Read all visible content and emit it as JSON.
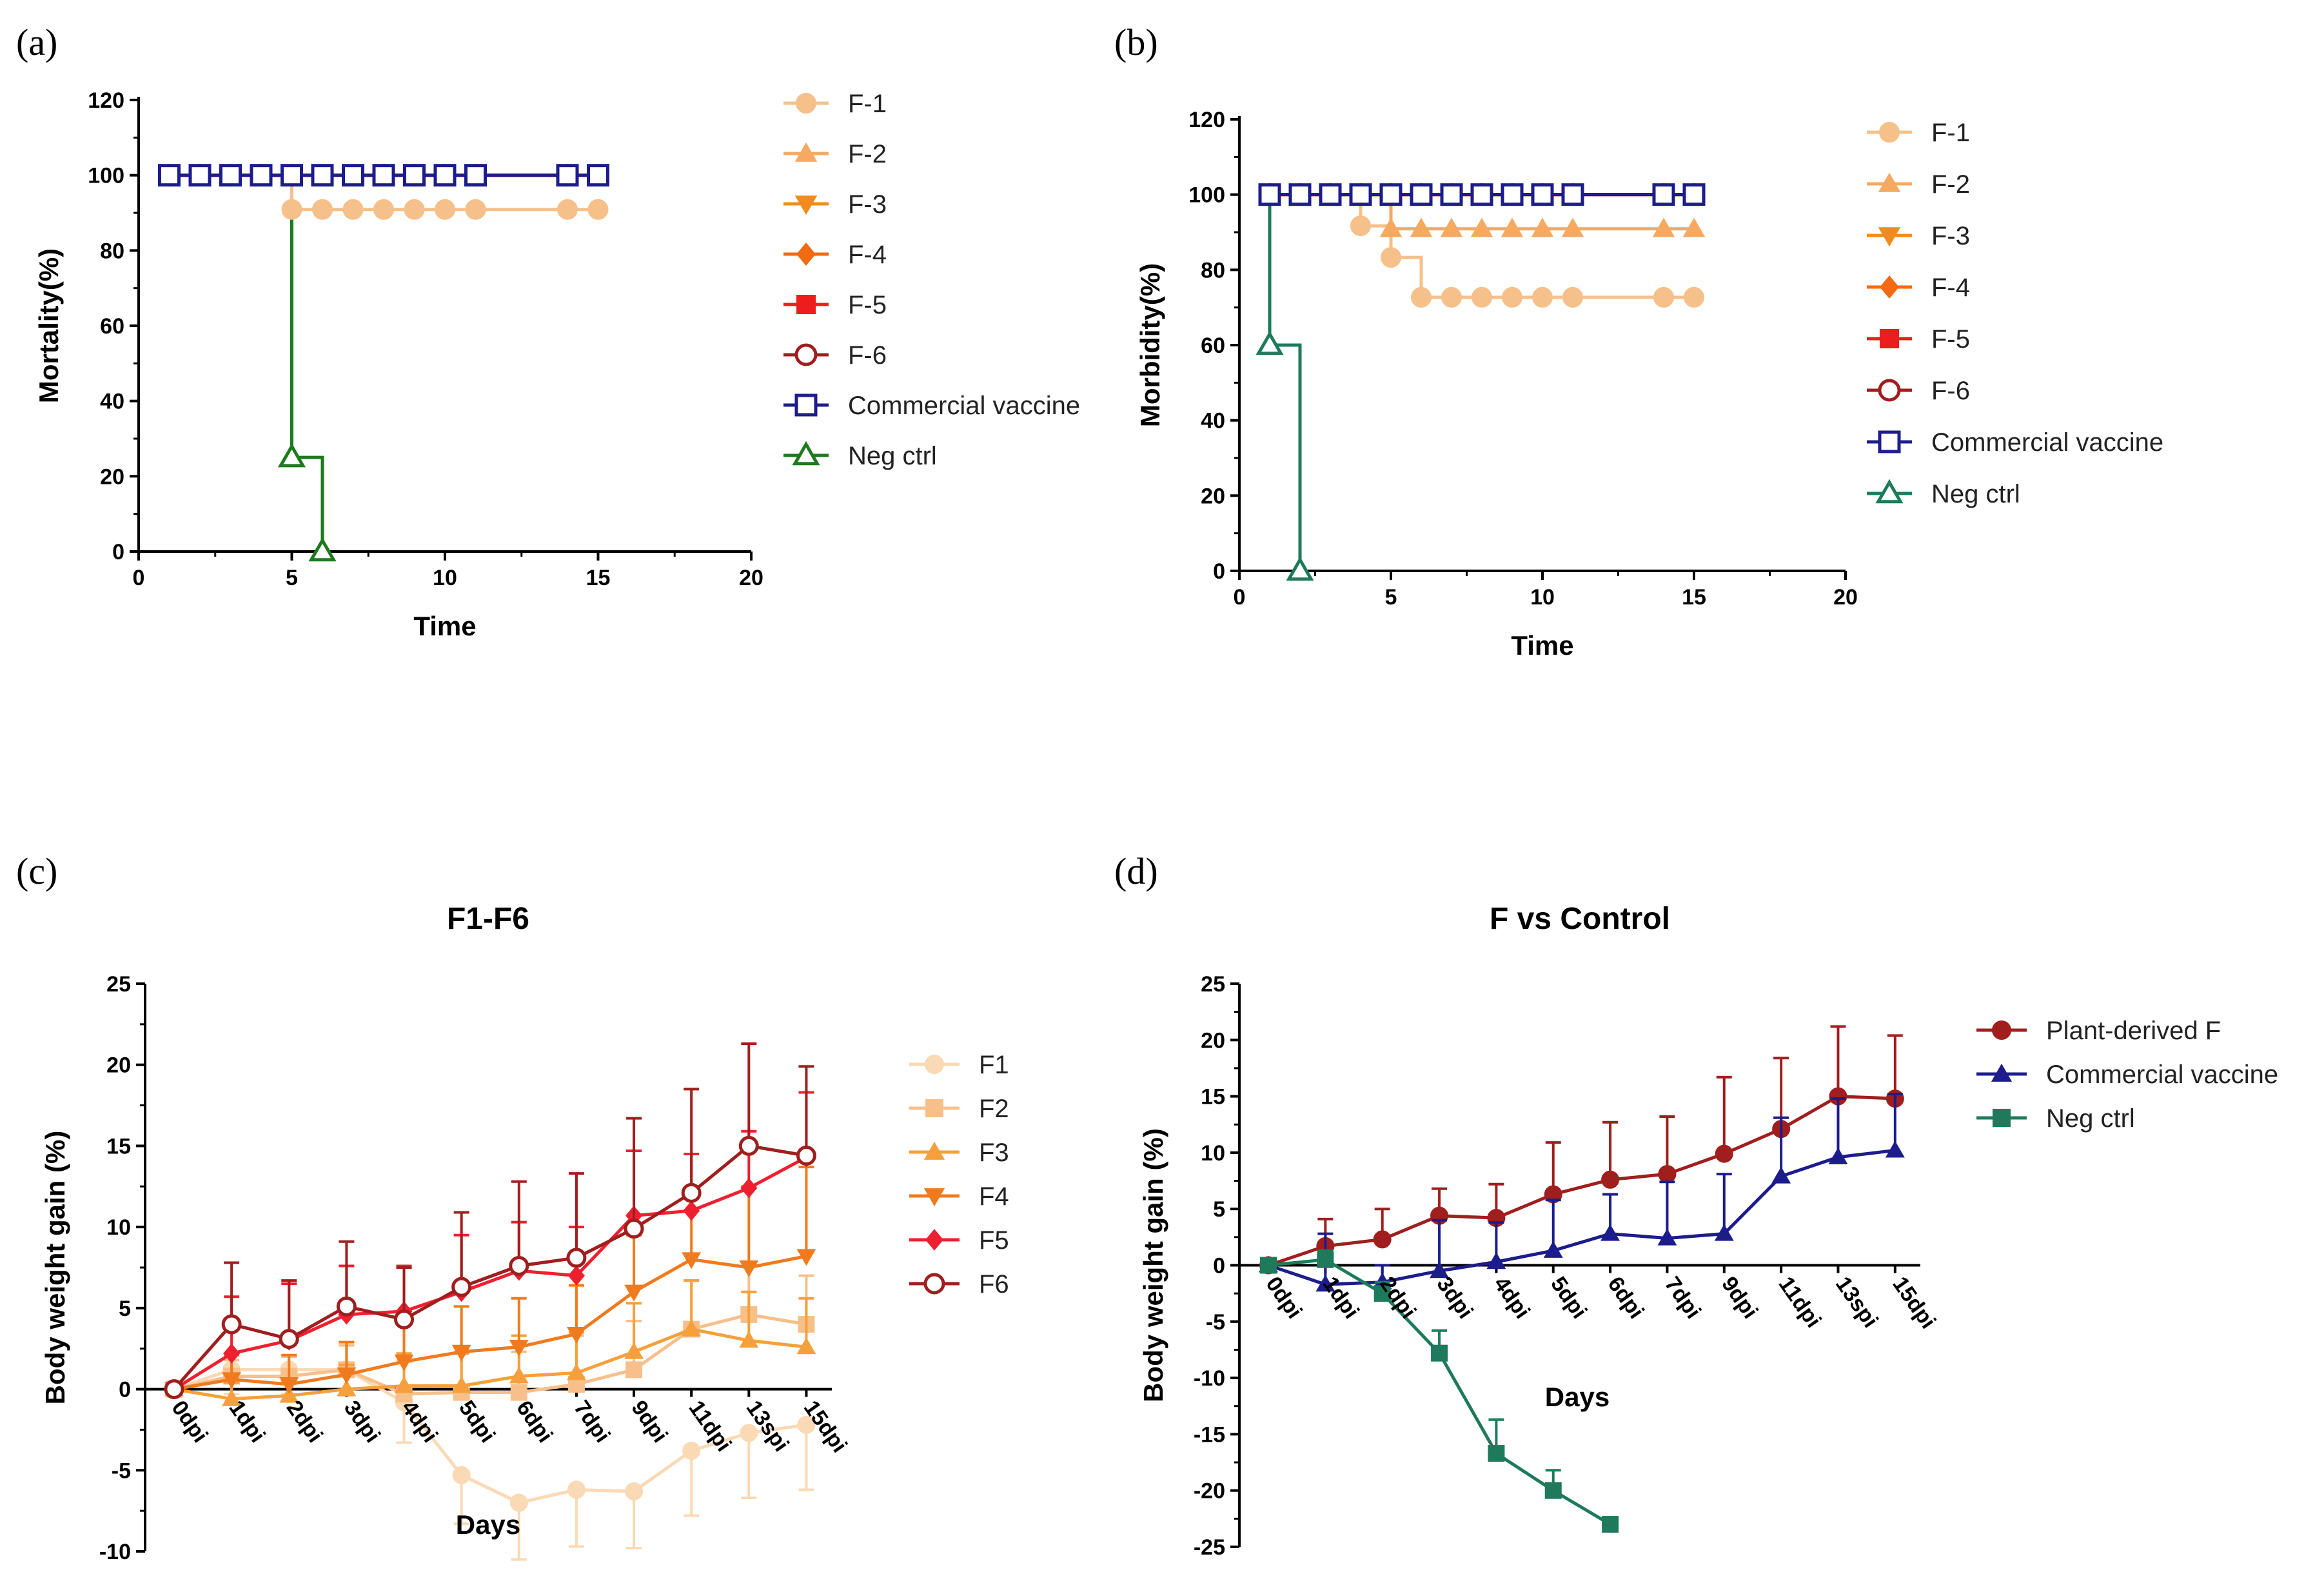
{
  "figure": {
    "panels": [
      {
        "id": "a",
        "label": "(a)"
      },
      {
        "id": "b",
        "label": "(b)"
      },
      {
        "id": "c",
        "label": "(c)"
      },
      {
        "id": "d",
        "label": "(d)"
      }
    ]
  },
  "chart_data": [
    {
      "id": "a",
      "type": "line",
      "step": true,
      "title": "",
      "xlabel": "Time",
      "ylabel": "Mortality(%)",
      "xlim": [
        0,
        20
      ],
      "ylim": [
        0,
        120
      ],
      "xticks": [
        0,
        5,
        10,
        15,
        20
      ],
      "yticks": [
        0,
        20,
        40,
        60,
        80,
        100,
        120
      ],
      "legend_position": "right",
      "series": [
        {
          "name": "F-1",
          "color": "#F6C08A",
          "marker": "circle",
          "x": [
            1,
            2,
            3,
            4,
            5,
            6,
            7,
            8,
            9,
            10,
            11,
            14,
            15
          ],
          "values": [
            100,
            100,
            100,
            100,
            90.9,
            90.9,
            90.9,
            90.9,
            90.9,
            90.9,
            90.9,
            90.9,
            90.9
          ]
        },
        {
          "name": "F-2",
          "color": "#F5A961",
          "marker": "triangle-up",
          "x": [
            1,
            2,
            3,
            4,
            5,
            6,
            7,
            8,
            9,
            10,
            11,
            14,
            15
          ],
          "values": [
            100,
            100,
            100,
            100,
            100,
            100,
            100,
            100,
            100,
            100,
            100,
            100,
            100
          ]
        },
        {
          "name": "F-3",
          "color": "#F08C1E",
          "marker": "triangle-down",
          "x": [
            1,
            2,
            3,
            4,
            5,
            6,
            7,
            8,
            9,
            10,
            11,
            14,
            15
          ],
          "values": [
            100,
            100,
            100,
            100,
            100,
            100,
            100,
            100,
            100,
            100,
            100,
            100,
            100
          ]
        },
        {
          "name": "F-4",
          "color": "#F26A12",
          "marker": "diamond",
          "x": [
            1,
            2,
            3,
            4,
            5,
            6,
            7,
            8,
            9,
            10,
            11,
            14,
            15
          ],
          "values": [
            100,
            100,
            100,
            100,
            100,
            100,
            100,
            100,
            100,
            100,
            100,
            100,
            100
          ]
        },
        {
          "name": "F-5",
          "color": "#EE1C1C",
          "marker": "square",
          "x": [
            1,
            2,
            3,
            4,
            5,
            6,
            7,
            8,
            9,
            10,
            11,
            14,
            15
          ],
          "values": [
            100,
            100,
            100,
            100,
            100,
            100,
            100,
            100,
            100,
            100,
            100,
            100,
            100
          ]
        },
        {
          "name": "F-6",
          "color": "#A01E1E",
          "marker": "circle-open",
          "x": [
            1,
            2,
            3,
            4,
            5,
            6,
            7,
            8,
            9,
            10,
            11,
            14,
            15
          ],
          "values": [
            100,
            100,
            100,
            100,
            100,
            100,
            100,
            100,
            100,
            100,
            100,
            100,
            100
          ]
        },
        {
          "name": "Commercial vaccine",
          "color": "#1C1C8C",
          "marker": "square-open",
          "x": [
            1,
            2,
            3,
            4,
            5,
            6,
            7,
            8,
            9,
            10,
            11,
            14,
            15
          ],
          "values": [
            100,
            100,
            100,
            100,
            100,
            100,
            100,
            100,
            100,
            100,
            100,
            100,
            100
          ]
        },
        {
          "name": "Neg ctrl",
          "color": "#1E7A1E",
          "marker": "triangle-open",
          "x": [
            5,
            6
          ],
          "values": [
            25,
            0
          ],
          "line_x": [
            1,
            5,
            6
          ],
          "line_values": [
            100,
            25,
            0
          ]
        }
      ]
    },
    {
      "id": "b",
      "type": "line",
      "step": true,
      "title": "",
      "xlabel": "Time",
      "ylabel": "Morbidity(%)",
      "xlim": [
        0,
        20
      ],
      "ylim": [
        0,
        120
      ],
      "xticks": [
        0,
        5,
        10,
        15,
        20
      ],
      "yticks": [
        0,
        20,
        40,
        60,
        80,
        100,
        120
      ],
      "legend_position": "right",
      "series": [
        {
          "name": "F-1",
          "color": "#F6C08A",
          "marker": "circle",
          "x": [
            1,
            2,
            3,
            4,
            5,
            6,
            7,
            8,
            9,
            10,
            11,
            14,
            15
          ],
          "values": [
            100,
            100,
            100,
            91.7,
            83.3,
            72.7,
            72.7,
            72.7,
            72.7,
            72.7,
            72.7,
            72.7,
            72.7
          ]
        },
        {
          "name": "F-2",
          "color": "#F5A961",
          "marker": "triangle-up",
          "x": [
            1,
            2,
            3,
            4,
            5,
            6,
            7,
            8,
            9,
            10,
            11,
            14,
            15
          ],
          "values": [
            100,
            100,
            100,
            100,
            90.9,
            90.9,
            90.9,
            90.9,
            90.9,
            90.9,
            90.9,
            90.9,
            90.9
          ]
        },
        {
          "name": "F-3",
          "color": "#F08C1E",
          "marker": "triangle-down",
          "x": [
            1,
            2,
            3,
            4,
            5,
            6,
            7,
            8,
            9,
            10,
            11,
            14,
            15
          ],
          "values": [
            100,
            100,
            100,
            100,
            100,
            100,
            100,
            100,
            100,
            100,
            100,
            100,
            100
          ]
        },
        {
          "name": "F-4",
          "color": "#F26A12",
          "marker": "diamond",
          "x": [
            1,
            2,
            3,
            4,
            5,
            6,
            7,
            8,
            9,
            10,
            11,
            14,
            15
          ],
          "values": [
            100,
            100,
            100,
            100,
            100,
            100,
            100,
            100,
            100,
            100,
            100,
            100,
            100
          ]
        },
        {
          "name": "F-5",
          "color": "#EE1C1C",
          "marker": "square",
          "x": [
            1,
            2,
            3,
            4,
            5,
            6,
            7,
            8,
            9,
            10,
            11,
            14,
            15
          ],
          "values": [
            100,
            100,
            100,
            100,
            100,
            100,
            100,
            100,
            100,
            100,
            100,
            100,
            100
          ]
        },
        {
          "name": "F-6",
          "color": "#A01E1E",
          "marker": "circle-open",
          "x": [
            1,
            2,
            3,
            4,
            5,
            6,
            7,
            8,
            9,
            10,
            11,
            14,
            15
          ],
          "values": [
            100,
            100,
            100,
            100,
            100,
            100,
            100,
            100,
            100,
            100,
            100,
            100,
            100
          ]
        },
        {
          "name": "Commercial vaccine",
          "color": "#1C1C8C",
          "marker": "square-open",
          "x": [
            1,
            2,
            3,
            4,
            5,
            6,
            7,
            8,
            9,
            10,
            11,
            14,
            15
          ],
          "values": [
            100,
            100,
            100,
            100,
            100,
            100,
            100,
            100,
            100,
            100,
            100,
            100,
            100
          ]
        },
        {
          "name": "Neg ctrl",
          "color": "#1E7A5A",
          "marker": "triangle-open",
          "x": [
            1,
            2
          ],
          "values": [
            60,
            0
          ],
          "line_x": [
            1,
            2
          ],
          "line_values": [
            60,
            0
          ],
          "start_value": 100
        }
      ]
    },
    {
      "id": "c",
      "type": "line",
      "title": "F1-F6",
      "xlabel": "Days",
      "ylabel": "Body weight gain (%)",
      "ylim": [
        -10,
        25
      ],
      "yticks": [
        -10,
        -5,
        0,
        5,
        10,
        15,
        20,
        25
      ],
      "categories": [
        "0dpi",
        "1dpi",
        "2dpi",
        "3dpi",
        "4dpi",
        "5dpi",
        "6dpi",
        "7dpi",
        "9dpi",
        "11dpi",
        "13spi",
        "15dpi"
      ],
      "legend_position": "right",
      "series": [
        {
          "name": "F1",
          "color": "#FAD9B5",
          "marker": "circle",
          "values": [
            0,
            1.2,
            1.2,
            1.2,
            -0.8,
            -5.3,
            -7.0,
            -6.2,
            -6.3,
            -3.8,
            -2.7,
            -2.2
          ],
          "errors": [
            0,
            1.5,
            1.5,
            1.5,
            2.5,
            3.0,
            3.5,
            3.5,
            3.5,
            4.0,
            4.0,
            4.0
          ]
        },
        {
          "name": "F2",
          "color": "#F7C08A",
          "marker": "square",
          "values": [
            0,
            0.8,
            0.8,
            1.2,
            -0.3,
            -0.2,
            -0.2,
            0.3,
            1.2,
            3.7,
            4.6,
            4.0
          ],
          "errors": [
            0,
            1.0,
            1.2,
            1.5,
            2.0,
            2.5,
            2.5,
            3.0,
            3.0,
            3.0,
            3.0,
            3.0
          ]
        },
        {
          "name": "F3",
          "color": "#F5A03C",
          "marker": "triangle-up",
          "values": [
            0,
            -0.6,
            -0.4,
            0,
            0.2,
            0.2,
            0.8,
            1.0,
            2.3,
            3.7,
            3.0,
            2.6
          ],
          "errors": [
            0,
            1.0,
            1.0,
            1.5,
            2.0,
            2.0,
            2.5,
            2.5,
            3.0,
            3.0,
            3.0,
            3.0
          ]
        },
        {
          "name": "F4",
          "color": "#F07A1E",
          "marker": "triangle-down",
          "values": [
            0,
            0.6,
            0.3,
            0.9,
            1.7,
            2.3,
            2.6,
            3.4,
            6.0,
            8.0,
            7.5,
            8.2
          ],
          "errors": [
            0,
            1.5,
            1.8,
            2.0,
            2.5,
            2.8,
            3.0,
            3.0,
            3.5,
            4.0,
            5.0,
            5.5
          ]
        },
        {
          "name": "F5",
          "color": "#EE2030",
          "marker": "diamond",
          "values": [
            0,
            2.2,
            3.0,
            4.6,
            4.8,
            6.0,
            7.3,
            7.0,
            10.7,
            11.0,
            12.4,
            14.3
          ],
          "errors": [
            0,
            3.5,
            3.5,
            3.0,
            2.8,
            3.5,
            3.0,
            3.0,
            4.0,
            3.5,
            3.5,
            4.0
          ]
        },
        {
          "name": "F6",
          "color": "#A01E1E",
          "marker": "circle-open",
          "values": [
            0,
            4.0,
            3.1,
            5.1,
            4.3,
            6.3,
            7.6,
            8.1,
            9.9,
            12.1,
            15.0,
            14.4
          ],
          "errors": [
            0,
            3.8,
            3.6,
            4.0,
            3.2,
            4.6,
            5.2,
            5.2,
            6.8,
            6.4,
            6.3,
            5.5
          ]
        }
      ]
    },
    {
      "id": "d",
      "type": "line",
      "title": "F vs Control",
      "xlabel": "Days",
      "ylabel": "Body weight gain (%)",
      "ylim": [
        -25,
        25
      ],
      "yticks": [
        -25,
        -20,
        -15,
        -10,
        -5,
        0,
        5,
        10,
        15,
        20,
        25
      ],
      "categories": [
        "0dpi",
        "1dpi",
        "2dpi",
        "3dpi",
        "4dpi",
        "5dpi",
        "6dpi",
        "7dpi",
        "9dpi",
        "11dpi",
        "13spi",
        "15dpi"
      ],
      "legend_position": "right",
      "series": [
        {
          "name": "Plant-derived F",
          "color": "#A01E1E",
          "marker": "circle",
          "values": [
            0,
            1.7,
            2.3,
            4.4,
            4.2,
            6.3,
            7.6,
            8.1,
            9.9,
            12.1,
            15.0,
            14.8
          ],
          "errors": [
            0,
            2.4,
            2.7,
            2.4,
            3.0,
            4.6,
            5.1,
            5.1,
            6.8,
            6.3,
            6.2,
            5.6
          ]
        },
        {
          "name": "Commercial vaccine",
          "color": "#1C1C8C",
          "marker": "triangle-up",
          "values": [
            0,
            -1.7,
            -1.5,
            -0.5,
            0.3,
            1.3,
            2.8,
            2.4,
            2.8,
            7.9,
            9.6,
            10.2
          ],
          "errors": [
            0,
            4.5,
            1.5,
            4.5,
            3.5,
            4.5,
            3.5,
            5.0,
            5.3,
            5.2,
            5.2,
            5.0
          ]
        },
        {
          "name": "Neg ctrl",
          "color": "#1E7A5A",
          "marker": "square",
          "values": [
            0,
            0.5,
            -2.5,
            -7.8,
            -16.7,
            -20.0,
            -23.0,
            null,
            null,
            null,
            null,
            null
          ],
          "errors": [
            0,
            0.8,
            1.0,
            2.0,
            3.0,
            1.8,
            0,
            0,
            0,
            0,
            0,
            0
          ]
        }
      ]
    }
  ]
}
